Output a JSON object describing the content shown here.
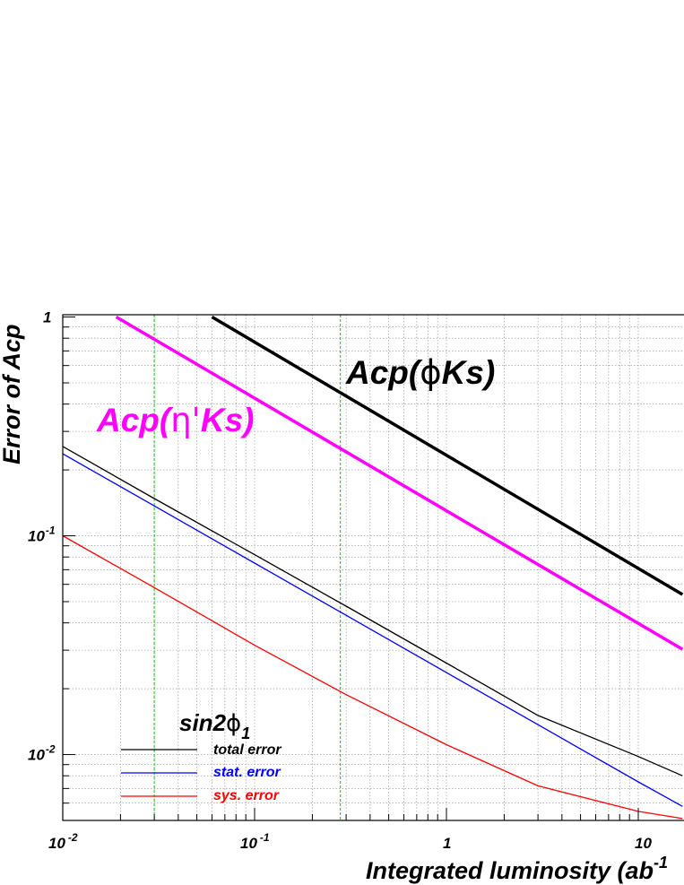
{
  "chart_data": {
    "type": "line",
    "x_scale": "log",
    "y_scale": "log",
    "xlim": [
      0.01,
      17
    ],
    "ylim": [
      0.005,
      1
    ],
    "xlabel": "Integrated luminosity (ab",
    "xlabel_sup": "-1",
    "ylabel": "Error of Acp",
    "x_ticks": [
      {
        "base": "10",
        "exp": "-2"
      },
      {
        "base": "10",
        "exp": "-1"
      },
      {
        "base": "1",
        "exp": ""
      },
      {
        "base": "10",
        "exp": ""
      }
    ],
    "y_ticks": [
      {
        "base": "1",
        "exp": ""
      },
      {
        "base": "10",
        "exp": "-1"
      },
      {
        "base": "10",
        "exp": "-2"
      }
    ],
    "grid": true,
    "reference_lines_x": [
      0.03,
      0.28
    ],
    "annotations": [
      {
        "text": "Acp(",
        "greek": "ϕ",
        "tail": "Ks)",
        "x": 0.28,
        "y": 0.47,
        "color": "#000000"
      },
      {
        "text": "Acp(",
        "greek": "η'",
        "tail": "Ks)",
        "x": 0.0175,
        "y": 0.275,
        "color": "#ff00ff"
      }
    ],
    "legend": {
      "title": "sin2",
      "title_greek": "ϕ",
      "title_sub": "1",
      "position": "bottom-left",
      "entries": [
        {
          "label": "total error",
          "color": "#000000"
        },
        {
          "label": "stat. error",
          "color": "#0000ff"
        },
        {
          "label": "sys. error",
          "color": "#ff0000"
        }
      ]
    },
    "series": [
      {
        "color": "#000000",
        "width": 3.5,
        "x": [
          0.06,
          17
        ],
        "y": [
          1.0,
          0.0539
        ]
      },
      {
        "color": "#ff00ff",
        "width": 3.5,
        "x": [
          0.019,
          17
        ],
        "y": [
          1.0,
          0.0303
        ]
      },
      {
        "color": "#000000",
        "width": 1.3,
        "x": [
          0.01,
          0.03,
          0.1,
          0.3,
          1,
          3,
          10,
          17
        ],
        "y": [
          0.256,
          0.148,
          0.082,
          0.0477,
          0.0262,
          0.0151,
          0.0098,
          0.008
        ]
      },
      {
        "color": "#0000ff",
        "width": 1.3,
        "x": [
          0.01,
          0.03,
          0.1,
          0.3,
          1,
          3,
          10,
          17
        ],
        "y": [
          0.237,
          0.137,
          0.075,
          0.0433,
          0.0237,
          0.0137,
          0.0075,
          0.0058
        ]
      },
      {
        "color": "#ff0000",
        "width": 1.3,
        "x": [
          0.01,
          0.03,
          0.1,
          0.3,
          1,
          3,
          10,
          17
        ],
        "y": [
          0.1,
          0.058,
          0.0316,
          0.0188,
          0.0111,
          0.0072,
          0.0055,
          0.0051
        ]
      }
    ]
  }
}
